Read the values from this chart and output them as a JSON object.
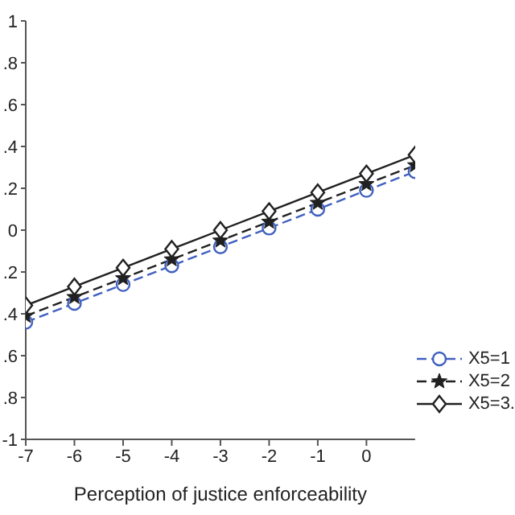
{
  "chart_data": {
    "type": "line",
    "xlabel": "Perception of justice enforceability",
    "x": [
      -7,
      -6,
      -5,
      -4,
      -3,
      -2,
      -1,
      0,
      1
    ],
    "xlim": [
      -7,
      1
    ],
    "xticks": [
      -7,
      -6,
      -5,
      -4,
      -3,
      -2,
      -1,
      0
    ],
    "ylim": [
      -1,
      1
    ],
    "yticks": [
      {
        "value": -1,
        "label": "-1"
      },
      {
        "value": -0.8,
        "label": ".8"
      },
      {
        "value": -0.6,
        "label": ".6"
      },
      {
        "value": -0.4,
        "label": ".4"
      },
      {
        "value": -0.2,
        "label": ".2"
      },
      {
        "value": 0,
        "label": "0"
      },
      {
        "value": 0.2,
        "label": ".2"
      },
      {
        "value": 0.4,
        "label": ".4"
      },
      {
        "value": 0.6,
        "label": ".6"
      },
      {
        "value": 0.8,
        "label": ".8"
      },
      {
        "value": 1,
        "label": "1"
      }
    ],
    "legend": "bottom right",
    "grid": false,
    "series": [
      {
        "name": "X5=1",
        "color": "#4060c0",
        "marker": "circle",
        "line_style": "dashed",
        "values": [
          -0.44,
          -0.35,
          -0.26,
          -0.17,
          -0.08,
          0.01,
          0.1,
          0.19,
          0.28
        ]
      },
      {
        "name": "X5=2",
        "color": "#202020",
        "marker": "star",
        "line_style": "dashed",
        "values": [
          -0.41,
          -0.32,
          -0.23,
          -0.14,
          -0.05,
          0.04,
          0.13,
          0.22,
          0.31
        ]
      },
      {
        "name": "X5=3.",
        "color": "#202020",
        "marker": "diamond",
        "line_style": "solid",
        "values": [
          -0.36,
          -0.27,
          -0.18,
          -0.09,
          0.0,
          0.09,
          0.18,
          0.27,
          0.36
        ]
      }
    ]
  }
}
